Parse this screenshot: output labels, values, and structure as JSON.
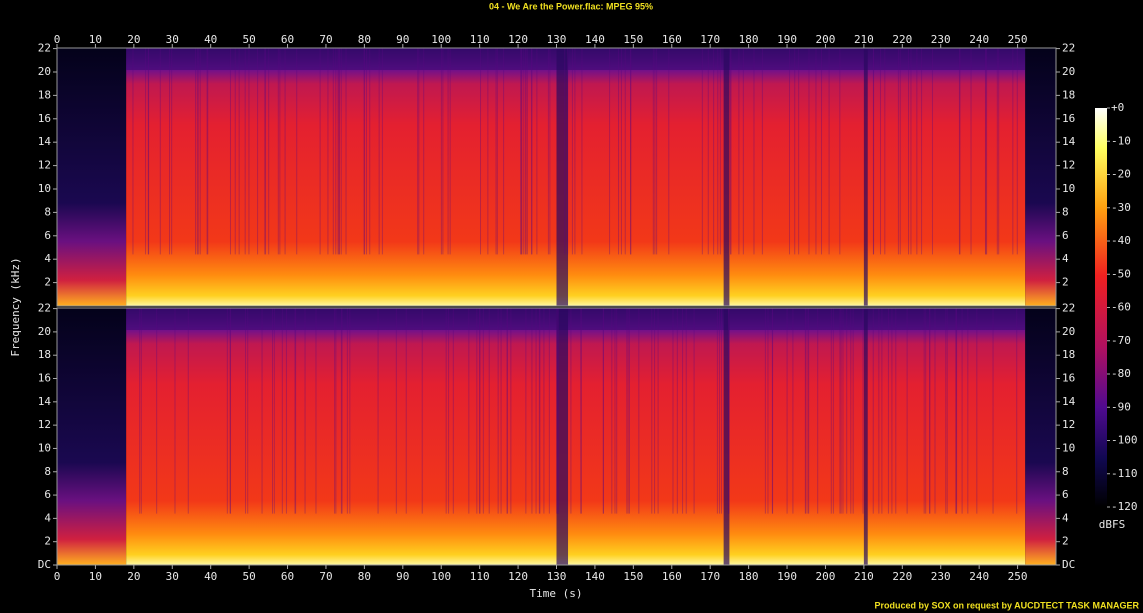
{
  "chart_data": {
    "type": "spectrogram",
    "title": "04 - We Are the Power.flac: MPEG 95%",
    "xlabel": "Time (s)",
    "ylabel": "Frequency (kHz)",
    "xlim": [
      0,
      260
    ],
    "xticks": [
      0,
      10,
      20,
      30,
      40,
      50,
      60,
      70,
      80,
      90,
      100,
      110,
      120,
      130,
      140,
      150,
      160,
      170,
      180,
      190,
      200,
      210,
      220,
      230,
      240,
      250
    ],
    "ylim": [
      0,
      22.05
    ],
    "yticks": [
      {
        "value": 0,
        "label": "DC"
      },
      2,
      4,
      6,
      8,
      10,
      12,
      14,
      16,
      18,
      20,
      22
    ],
    "colorbar": {
      "label": "dBFS",
      "lim": [
        -120,
        0
      ],
      "ticks": [
        {
          "value": 0,
          "label": "+0"
        },
        -10,
        -20,
        -30,
        -40,
        -50,
        -60,
        -70,
        -80,
        -90,
        -100,
        -110,
        -120
      ]
    },
    "footer": "Produced by SOX on request by AUCDTECT TASK MANAGER"
  }
}
